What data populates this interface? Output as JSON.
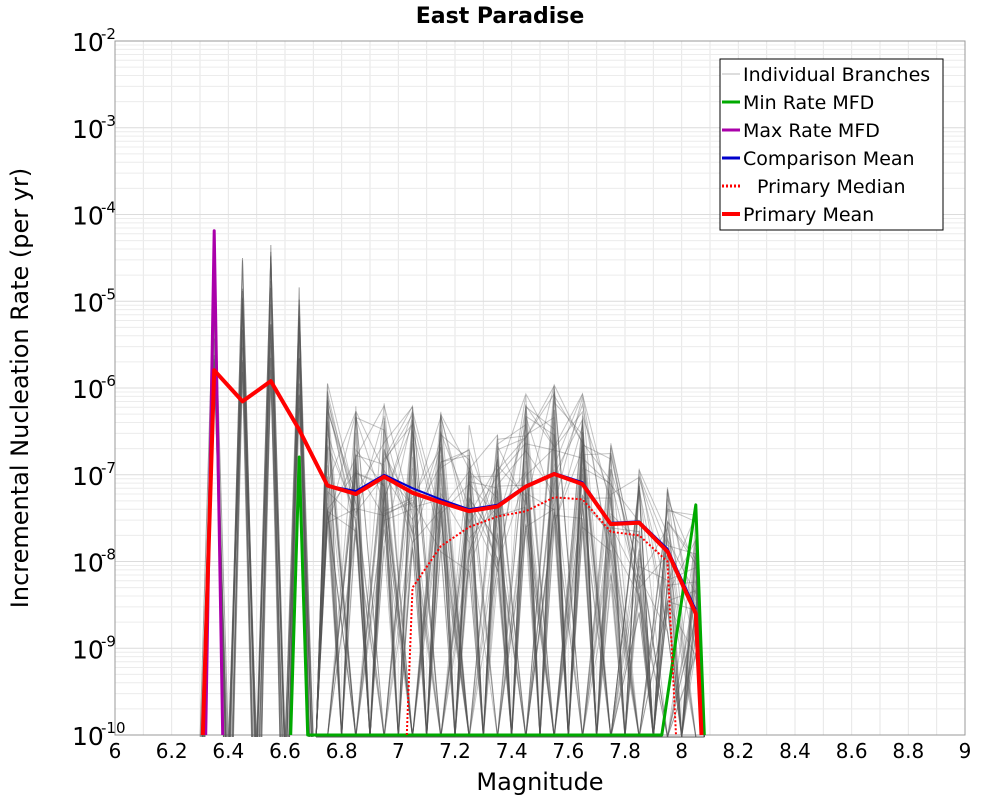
{
  "chart_data": {
    "type": "line",
    "title": "East Paradise",
    "xlabel": "Magnitude",
    "ylabel": "Incremental Nucleation Rate (per yr)",
    "xlim": [
      6,
      9
    ],
    "ylim": [
      1e-10,
      0.01
    ],
    "y_scale": "log",
    "grid": true,
    "legend_position": "top-right",
    "x_ticks": [
      "6",
      "6.2",
      "6.4",
      "6.6",
      "6.8",
      "7",
      "7.2",
      "7.4",
      "7.6",
      "7.8",
      "8",
      "8.2",
      "8.4",
      "8.6",
      "8.8",
      "9"
    ],
    "y_ticks": [
      {
        "mantissa": "10",
        "exponent": "-10",
        "value": 1e-10
      },
      {
        "mantissa": "10",
        "exponent": "-9",
        "value": 1e-09
      },
      {
        "mantissa": "10",
        "exponent": "-8",
        "value": 1e-08
      },
      {
        "mantissa": "10",
        "exponent": "-7",
        "value": 1e-07
      },
      {
        "mantissa": "10",
        "exponent": "-6",
        "value": 1e-06
      },
      {
        "mantissa": "10",
        "exponent": "-5",
        "value": 1e-05
      },
      {
        "mantissa": "10",
        "exponent": "-4",
        "value": 0.0001
      },
      {
        "mantissa": "10",
        "exponent": "-3",
        "value": 0.001
      },
      {
        "mantissa": "10",
        "exponent": "-2",
        "value": 0.01
      }
    ],
    "series": [
      {
        "name": "Individual Branches",
        "color": "#555555",
        "style": "thin",
        "representative_peaks": {
          "x": [
            6.35,
            6.45,
            6.55,
            6.65,
            6.75,
            6.85,
            6.95,
            7.05,
            7.15,
            7.25,
            7.35,
            7.45,
            7.55,
            7.65,
            7.75,
            7.85,
            7.95,
            8.05
          ],
          "y": [
            7e-05,
            4.5e-05,
            4.5e-05,
            2.2e-05,
            1.8e-06,
            1.5e-06,
            1.2e-06,
            1e-06,
            9e-07,
            6e-07,
            5e-07,
            1.5e-06,
            2e-06,
            1.5e-06,
            4e-07,
            2e-07,
            1.2e-07,
            6e-08
          ]
        }
      },
      {
        "name": "Min Rate MFD",
        "color": "#00aa00",
        "x": [
          6.62,
          6.65,
          6.68,
          7.93,
          8.05,
          8.08
        ],
        "y": [
          1e-10,
          1.6e-07,
          1e-10,
          1e-10,
          4.5e-08,
          1e-10
        ]
      },
      {
        "name": "Max Rate MFD",
        "color": "#aa00aa",
        "x": [
          6.32,
          6.35,
          6.38
        ],
        "y": [
          1e-10,
          6.5e-05,
          1e-10
        ]
      },
      {
        "name": "Comparison Mean",
        "color": "#0000cc",
        "x": [
          6.35,
          6.45,
          6.55,
          6.65,
          6.75,
          6.85,
          6.95,
          7.05,
          7.15,
          7.25,
          7.35,
          7.45,
          7.55,
          7.65,
          7.75,
          7.85,
          7.95,
          8.05
        ],
        "y": [
          1.6e-06,
          7e-07,
          1.2e-06,
          3.3e-07,
          7.5e-08,
          6.5e-08,
          1e-07,
          7e-08,
          5.2e-08,
          4e-08,
          4.5e-08,
          7.5e-08,
          1.05e-07,
          8.2e-08,
          2.8e-08,
          2.9e-08,
          1.4e-08,
          2.8e-09
        ]
      },
      {
        "name": "Primary Median",
        "color": "#ff0000",
        "style": "dotted",
        "x": [
          7.03,
          7.05,
          7.15,
          7.25,
          7.35,
          7.45,
          7.55,
          7.65,
          7.75,
          7.85,
          7.95,
          7.98
        ],
        "y": [
          1e-10,
          5e-09,
          1.5e-08,
          2.5e-08,
          3.3e-08,
          3.8e-08,
          5.5e-08,
          5.2e-08,
          2.2e-08,
          2e-08,
          1e-08,
          1e-10
        ]
      },
      {
        "name": "Primary Mean",
        "color": "#ff0000",
        "x": [
          6.31,
          6.35,
          6.45,
          6.55,
          6.65,
          6.75,
          6.85,
          6.95,
          7.05,
          7.15,
          7.25,
          7.35,
          7.45,
          7.55,
          7.65,
          7.75,
          7.85,
          7.95,
          8.05,
          8.07
        ],
        "y": [
          1e-10,
          1.6e-06,
          7e-07,
          1.2e-06,
          3.3e-07,
          7.5e-08,
          6e-08,
          9.5e-08,
          6.2e-08,
          4.8e-08,
          3.8e-08,
          4.3e-08,
          7.3e-08,
          1.02e-07,
          7.8e-08,
          2.7e-08,
          2.8e-08,
          1.3e-08,
          2.5e-09,
          1e-10
        ]
      }
    ]
  }
}
